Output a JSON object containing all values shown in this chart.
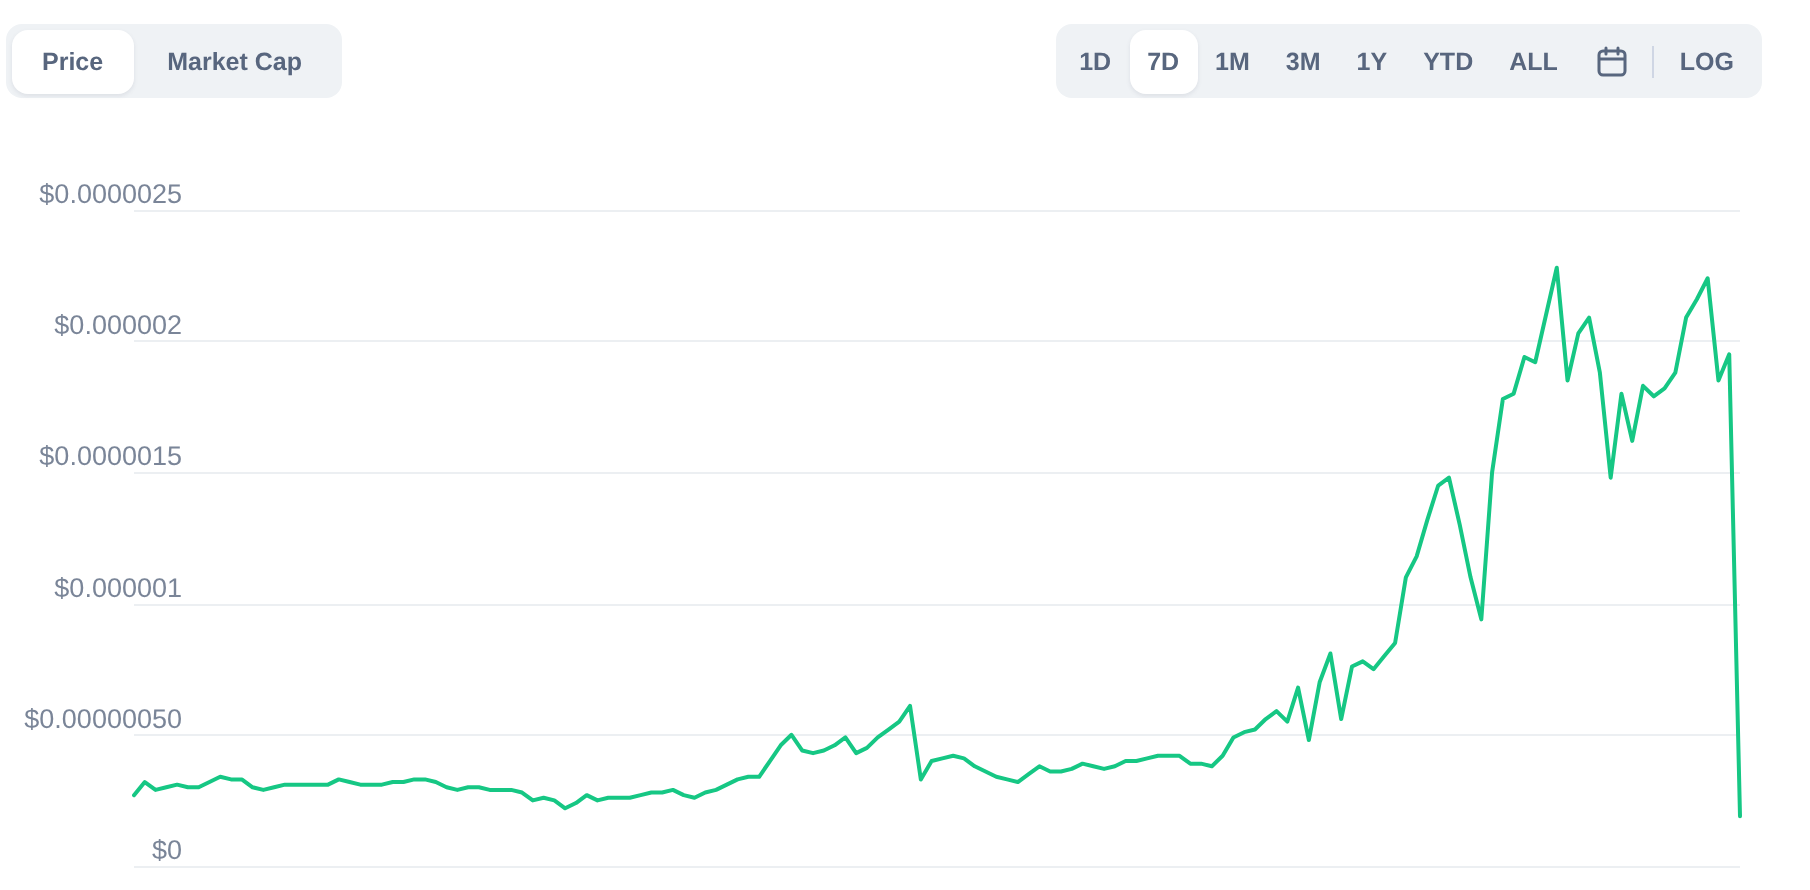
{
  "chart_data": {
    "type": "line",
    "annotations": [
      "Price",
      "Market Cap",
      "1D",
      "7D",
      "1M",
      "3M",
      "1Y",
      "YTD",
      "ALL",
      "LOG"
    ],
    "categories": [
      null,
      null,
      null,
      null,
      null,
      null,
      null,
      null,
      null,
      null,
      null,
      null,
      null,
      null,
      null,
      null,
      null,
      null,
      null,
      null,
      null,
      null,
      null,
      null,
      null,
      null,
      null,
      null,
      null,
      null,
      null,
      null,
      null,
      null,
      null,
      null,
      null,
      null,
      null,
      null,
      null,
      null,
      null,
      null,
      null,
      null,
      null,
      null,
      null,
      null,
      null,
      null,
      null,
      null,
      null,
      null,
      null,
      null,
      null,
      null,
      null,
      null,
      null,
      null,
      null,
      null,
      null,
      null,
      null,
      null,
      null,
      null,
      null,
      null,
      null,
      null,
      null,
      null,
      null,
      null,
      null,
      null,
      null,
      null,
      null,
      null,
      null,
      null,
      null,
      null,
      null,
      null,
      null,
      null,
      null,
      null,
      null,
      null,
      null,
      null,
      null,
      null,
      null,
      null,
      null,
      null,
      null,
      null,
      null,
      null,
      null,
      null,
      null,
      null,
      null,
      null,
      null,
      null,
      null,
      null,
      null,
      null,
      null,
      null,
      null,
      null,
      null,
      null,
      null,
      null,
      null,
      null,
      null,
      null,
      null,
      null,
      null,
      null,
      null,
      null,
      null,
      null,
      null,
      null,
      null,
      null,
      null,
      null,
      null,
      null
    ],
    "values": [
      2.7e-07,
      3.2e-07,
      2.9e-07,
      3e-07,
      3.1e-07,
      3e-07,
      3e-07,
      3.2e-07,
      3.4e-07,
      3.3e-07,
      3.3e-07,
      3e-07,
      2.9e-07,
      3e-07,
      3.1e-07,
      3.1e-07,
      3.1e-07,
      3.1e-07,
      3.1e-07,
      3.3e-07,
      3.2e-07,
      3.1e-07,
      3.1e-07,
      3.1e-07,
      3.2e-07,
      3.2e-07,
      3.3e-07,
      3.3e-07,
      3.2e-07,
      3e-07,
      2.9e-07,
      3e-07,
      3e-07,
      2.9e-07,
      2.9e-07,
      2.9e-07,
      2.8e-07,
      2.5e-07,
      2.6e-07,
      2.5e-07,
      2.2e-07,
      2.4e-07,
      2.7e-07,
      2.5e-07,
      2.6e-07,
      2.6e-07,
      2.6e-07,
      2.7e-07,
      2.8e-07,
      2.8e-07,
      2.9e-07,
      2.7e-07,
      2.6e-07,
      2.8e-07,
      2.9e-07,
      3.1e-07,
      3.3e-07,
      3.4e-07,
      3.4e-07,
      4e-07,
      4.6e-07,
      5e-07,
      4.4e-07,
      4.3e-07,
      4.4e-07,
      4.6e-07,
      4.9e-07,
      4.3e-07,
      4.5e-07,
      4.9e-07,
      5.2e-07,
      5.5e-07,
      6.1e-07,
      3.3e-07,
      4e-07,
      4.1e-07,
      4.2e-07,
      4.1e-07,
      3.8e-07,
      3.6e-07,
      3.4e-07,
      3.3e-07,
      3.2e-07,
      3.5e-07,
      3.8e-07,
      3.6e-07,
      3.6e-07,
      3.7e-07,
      3.9e-07,
      3.8e-07,
      3.7e-07,
      3.8e-07,
      4e-07,
      4e-07,
      4.1e-07,
      4.2e-07,
      4.2e-07,
      4.2e-07,
      3.9e-07,
      3.9e-07,
      3.8e-07,
      4.2e-07,
      4.9e-07,
      5.1e-07,
      5.2e-07,
      5.6e-07,
      5.9e-07,
      5.5e-07,
      6.8e-07,
      4.8e-07,
      7e-07,
      8.1e-07,
      5.6e-07,
      7.6e-07,
      7.8e-07,
      7.5e-07,
      8e-07,
      8.5e-07,
      1.1e-06,
      1.18e-06,
      1.32e-06,
      1.45e-06,
      1.48e-06,
      1.3e-06,
      1.1e-06,
      9.4e-07,
      1.5e-06,
      1.78e-06,
      1.8e-06,
      1.94e-06,
      1.92e-06,
      2.1e-06,
      2.28e-06,
      1.85e-06,
      2.03e-06,
      2.09e-06,
      1.88e-06,
      1.48e-06,
      1.8e-06,
      1.62e-06,
      1.83e-06,
      1.79e-06,
      1.82e-06,
      1.88e-06,
      2.09e-06,
      2.16e-06,
      2.24e-06,
      1.85e-06,
      1.95e-06,
      1.9e-07
    ],
    "color": "#16c784",
    "ylim": [
      0,
      2.5e-06
    ],
    "yticks": [
      {
        "value": 0,
        "label": "$0"
      },
      {
        "value": 5e-07,
        "label": "$0.00000050"
      },
      {
        "value": 1e-06,
        "label": "$0.000001"
      },
      {
        "value": 1.5e-06,
        "label": "$0.0000015"
      },
      {
        "value": 2e-06,
        "label": "$0.000002"
      },
      {
        "value": 2.5e-06,
        "label": "$0.0000025"
      }
    ],
    "grid": "y",
    "tick_labels": "y",
    "line_style": "solid"
  }
}
